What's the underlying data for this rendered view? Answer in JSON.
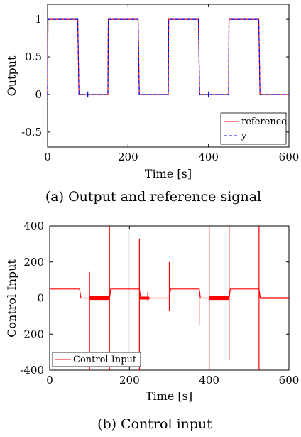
{
  "chart_data": [
    {
      "type": "line",
      "caption": "(a) Output and reference signal",
      "xlabel": "Time [s]",
      "ylabel": "Output",
      "xlim": [
        0,
        600
      ],
      "ylim": [
        -0.7,
        1.2
      ],
      "xticks": [
        0,
        200,
        400,
        600
      ],
      "yticks": [
        -0.5,
        0,
        0.5,
        1
      ],
      "ytick_labels": [
        "-0.5",
        "0",
        "0.5",
        "1"
      ],
      "xtick_labels": [
        "0",
        "200",
        "400",
        "600"
      ],
      "grid": false,
      "legend_position": "bottom-right",
      "series": [
        {
          "name": "reference",
          "color": "#ff0000",
          "style": "solid",
          "x": [
            0,
            1,
            75,
            78,
            150,
            151,
            225,
            228,
            300,
            301,
            375,
            378,
            450,
            451,
            525,
            528,
            600
          ],
          "y": [
            0,
            1,
            1,
            0,
            0,
            1,
            1,
            0,
            0,
            1,
            1,
            0,
            0,
            1,
            1,
            0,
            0
          ]
        },
        {
          "name": "y",
          "color": "#0000ff",
          "style": "dashed",
          "x": [
            0,
            1,
            75,
            78,
            150,
            151,
            225,
            228,
            300,
            301,
            375,
            378,
            450,
            451,
            525,
            528,
            600
          ],
          "y": [
            0,
            1,
            1,
            0,
            0,
            1,
            1,
            0,
            0,
            1,
            1,
            0,
            0,
            1,
            1,
            0,
            0
          ]
        }
      ],
      "annotations": [
        {
          "x": 100,
          "y_low": -0.04,
          "y_high": 0.04
        },
        {
          "x": 400,
          "y_low": -0.04,
          "y_high": 0.04
        }
      ]
    },
    {
      "type": "line",
      "caption": "(b) Control input",
      "xlabel": "Time [s]",
      "ylabel": "Control Input",
      "xlim": [
        0,
        600
      ],
      "ylim": [
        -400,
        400
      ],
      "xticks": [
        0,
        200,
        400,
        600
      ],
      "yticks": [
        -400,
        -200,
        0,
        200,
        400
      ],
      "ytick_labels": [
        "-400",
        "-200",
        "0",
        "200",
        "400"
      ],
      "xtick_labels": [
        "0",
        "200",
        "400",
        "600"
      ],
      "grid": false,
      "legend_position": "bottom-left",
      "series": [
        {
          "name": "Control Input",
          "color": "#ff0000",
          "style": "solid",
          "x": [
            0,
            75,
            78,
            100,
            150,
            153,
            200,
            225,
            228,
            250,
            300,
            303,
            370,
            375,
            378,
            400,
            450,
            453,
            525,
            528,
            600
          ],
          "y": [
            50,
            50,
            0,
            0,
            0,
            50,
            50,
            50,
            0,
            0,
            0,
            50,
            50,
            50,
            0,
            0,
            0,
            50,
            50,
            0,
            0
          ]
        }
      ],
      "spikes": [
        {
          "x": 100,
          "low": -400,
          "high": 145
        },
        {
          "x": 150,
          "low": -400,
          "high": 400
        },
        {
          "x": 225,
          "low": -400,
          "high": 330
        },
        {
          "x": 246,
          "low": -20,
          "high": 35
        },
        {
          "x": 300,
          "low": -70,
          "high": 200
        },
        {
          "x": 375,
          "low": -150,
          "high": 30
        },
        {
          "x": 400,
          "low": -400,
          "high": 400
        },
        {
          "x": 450,
          "low": -345,
          "high": 400
        },
        {
          "x": 525,
          "low": -400,
          "high": 400
        }
      ],
      "noise_bands": [
        {
          "x0": 100,
          "x1": 150,
          "amp": 10
        },
        {
          "x0": 225,
          "x1": 250,
          "amp": 8
        },
        {
          "x0": 400,
          "x1": 450,
          "amp": 10
        },
        {
          "x0": 528,
          "x1": 600,
          "amp": 4
        }
      ]
    }
  ]
}
